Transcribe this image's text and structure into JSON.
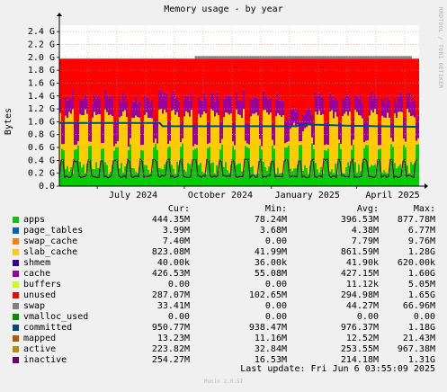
{
  "page": {
    "title": "Memory usage - by year",
    "watermark": "RRDTOOL / TOBI OETIKER",
    "ylabel": "Bytes",
    "last_update": "Last update: Fri Jun  6 03:55:09 2025",
    "version": "Munin 2.0.57"
  },
  "legend": {
    "headers": [
      "Cur:",
      "Min:",
      "Avg:",
      "Max:"
    ],
    "rows": [
      {
        "name": "apps",
        "color": "#00cc00",
        "cur": "444.35M",
        "min": "78.24M",
        "avg": "396.53M",
        "max": "877.78M"
      },
      {
        "name": "page_tables",
        "color": "#0066b3",
        "cur": "3.99M",
        "min": "3.68M",
        "avg": "4.38M",
        "max": "6.77M"
      },
      {
        "name": "swap_cache",
        "color": "#ff8000",
        "cur": "7.40M",
        "min": "0.00",
        "avg": "7.79M",
        "max": "9.76M"
      },
      {
        "name": "slab_cache",
        "color": "#ffcc00",
        "cur": "823.08M",
        "min": "41.99M",
        "avg": "861.59M",
        "max": "1.28G"
      },
      {
        "name": "shmem",
        "color": "#330099",
        "cur": "40.00k",
        "min": "36.00k",
        "avg": "41.90k",
        "max": "620.00k"
      },
      {
        "name": "cache",
        "color": "#990099",
        "cur": "426.53M",
        "min": "55.08M",
        "avg": "427.15M",
        "max": "1.60G"
      },
      {
        "name": "buffers",
        "color": "#ccff00",
        "cur": "0.00",
        "min": "0.00",
        "avg": "11.12k",
        "max": "5.05M"
      },
      {
        "name": "unused",
        "color": "#ff0000",
        "cur": "287.07M",
        "min": "102.65M",
        "avg": "294.98M",
        "max": "1.65G"
      },
      {
        "name": "swap",
        "color": "#808080",
        "cur": "33.41M",
        "min": "0.00",
        "avg": "44.27M",
        "max": "66.96M"
      },
      {
        "name": "vmalloc_used",
        "color": "#008f00",
        "cur": "0.00",
        "min": "0.00",
        "avg": "0.00",
        "max": "0.00"
      },
      {
        "name": "committed",
        "color": "#00487d",
        "cur": "950.77M",
        "min": "938.47M",
        "avg": "976.37M",
        "max": "1.18G"
      },
      {
        "name": "mapped",
        "color": "#b35a00",
        "cur": "13.23M",
        "min": "11.16M",
        "avg": "12.52M",
        "max": "21.43M"
      },
      {
        "name": "active",
        "color": "#b38f00",
        "cur": "223.82M",
        "min": "32.84M",
        "avg": "253.55M",
        "max": "967.38M"
      },
      {
        "name": "inactive",
        "color": "#6b006b",
        "cur": "254.27M",
        "min": "16.53M",
        "avg": "214.18M",
        "max": "1.31G"
      }
    ]
  },
  "chart_data": {
    "type": "area",
    "title": "Memory usage - by year",
    "ylabel": "Bytes",
    "xlabel": "",
    "ylim": [
      0,
      2.5
    ],
    "y_unit": "G",
    "y_ticks": [
      "0.0",
      "0.2 G",
      "0.4 G",
      "0.6 G",
      "0.8 G",
      "1.0 G",
      "1.2 G",
      "1.4 G",
      "1.6 G",
      "1.8 G",
      "2.0 G",
      "2.2 G",
      "2.4 G"
    ],
    "x_ticks": [
      "July 2024",
      "October 2024",
      "January 2025",
      "April 2025"
    ],
    "grid": true,
    "time_range": [
      "2024-05-22",
      "2025-06-06"
    ],
    "x_tick_dates": [
      "2024-07-01",
      "2024-10-01",
      "2025-01-01",
      "2025-04-01"
    ],
    "stack_total_G": 1.98,
    "series": [
      {
        "name": "apps",
        "avg_G": 0.4
      },
      {
        "name": "slab_cache",
        "avg_G": 0.86
      },
      {
        "name": "cache",
        "avg_G": 0.43
      },
      {
        "name": "unused",
        "avg_G": 0.29
      },
      {
        "name": "swap",
        "avg_G": 0.04
      },
      {
        "name": "committed",
        "avg_G": 0.98
      },
      {
        "name": "active",
        "avg_G": 0.25
      },
      {
        "name": "inactive",
        "avg_G": 0.21
      }
    ]
  }
}
